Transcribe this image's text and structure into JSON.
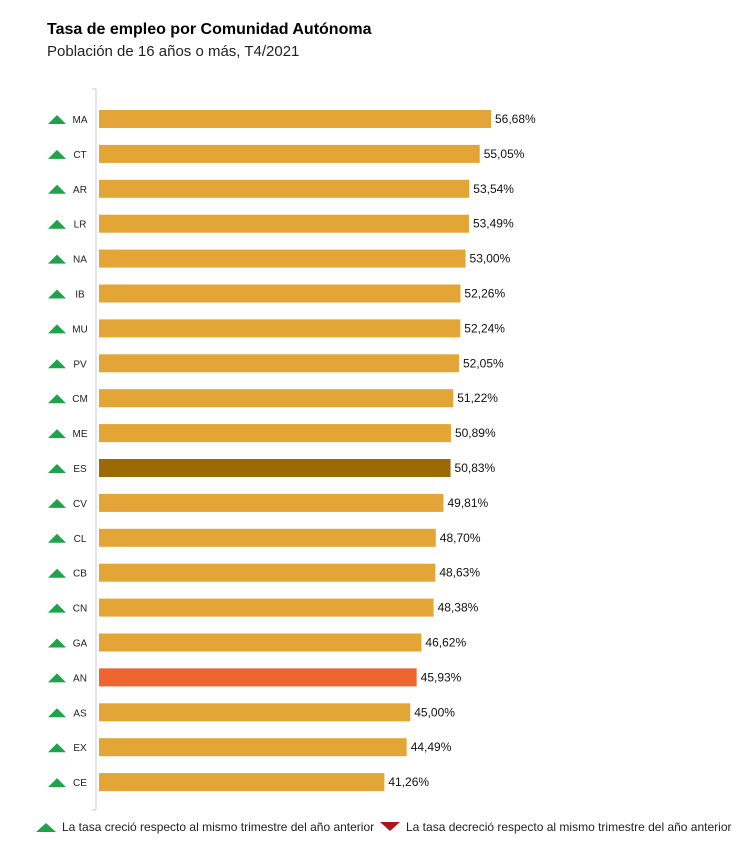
{
  "chart_data": {
    "type": "bar",
    "orientation": "horizontal",
    "title": "Tasa de empleo por Comunidad Autónoma",
    "subtitle": "Población de 16 años o más, T4/2021",
    "categories": [
      "MA",
      "CT",
      "AR",
      "LR",
      "NA",
      "IB",
      "MU",
      "PV",
      "CM",
      "ME",
      "ES",
      "CV",
      "CL",
      "CB",
      "CN",
      "GA",
      "AN",
      "AS",
      "EX",
      "CE"
    ],
    "values": [
      56.68,
      55.05,
      53.54,
      53.49,
      53.0,
      52.26,
      52.24,
      52.05,
      51.22,
      50.89,
      50.83,
      49.81,
      48.7,
      48.63,
      48.38,
      46.62,
      45.93,
      45.0,
      44.49,
      41.26
    ],
    "value_labels": [
      "56,68%",
      "55,05%",
      "53,54%",
      "53,49%",
      "53,00%",
      "52,26%",
      "52,24%",
      "52,05%",
      "51,22%",
      "50,89%",
      "50,83%",
      "49,81%",
      "48,70%",
      "48,63%",
      "48,38%",
      "46,62%",
      "45,93%",
      "45,00%",
      "44,49%",
      "41,26%"
    ],
    "trend": [
      "up",
      "up",
      "up",
      "up",
      "up",
      "up",
      "up",
      "up",
      "up",
      "up",
      "up",
      "up",
      "up",
      "up",
      "up",
      "up",
      "up",
      "up",
      "up",
      "up"
    ],
    "highlight": {
      "ES": "#9b6a05",
      "AN": "#ef6530"
    },
    "xlim": [
      0,
      56.68
    ],
    "grid": false,
    "legend_position": "bottom"
  },
  "colors": {
    "bar": "#e3a535",
    "national": "#9b6a05",
    "andalucia": "#ef6530",
    "up": "#1fa34a",
    "down": "#b1131b"
  },
  "legend": {
    "up_label": "La tasa creció respecto al mismo trimestre del año anterior",
    "down_label": "La tasa decreció respecto al mismo trimestre del año anterior"
  }
}
